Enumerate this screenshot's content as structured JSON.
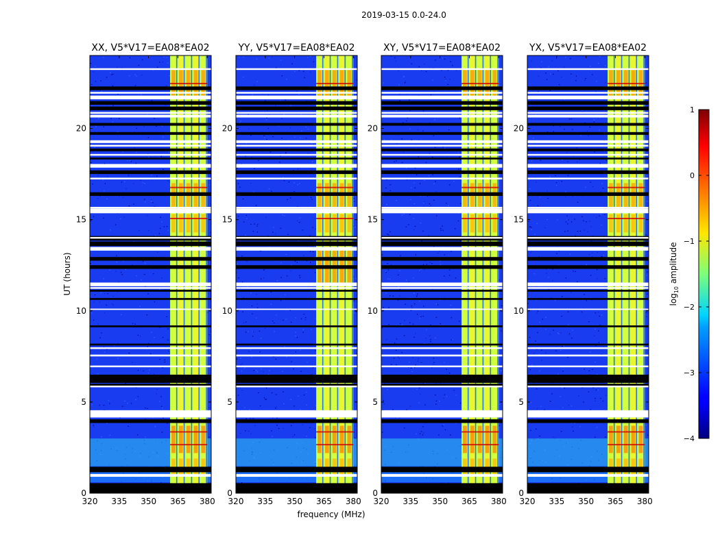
{
  "chart_data": {
    "type": "heatmap",
    "suptitle": "2019-03-15 0.0-24.0",
    "xlabel": "frequency (MHz)",
    "ylabel": "UT (hours)",
    "xlim": [
      320,
      382
    ],
    "ylim": [
      0,
      24
    ],
    "xticks": [
      320,
      335,
      350,
      365,
      380
    ],
    "yticks": [
      0,
      5,
      10,
      15,
      20
    ],
    "xtick_labels": [
      "320",
      "335",
      "350",
      "365",
      "380"
    ],
    "ytick_labels": [
      "0",
      "5",
      "10",
      "15",
      "20"
    ],
    "active_band_mhz": [
      361,
      380
    ],
    "flagged_time_rows_hours": [
      [
        0.0,
        0.55
      ],
      [
        0.9,
        1.05
      ],
      [
        1.15,
        1.45
      ],
      [
        3.85,
        4.05
      ],
      [
        4.15,
        4.55
      ],
      [
        5.85,
        6.0
      ],
      [
        6.05,
        6.5
      ],
      [
        7.5,
        7.6
      ],
      [
        8.1,
        8.2
      ],
      [
        9.1,
        9.2
      ],
      [
        10.05,
        10.12
      ],
      [
        10.6,
        10.7
      ],
      [
        11.05,
        11.15
      ],
      [
        11.35,
        11.55
      ],
      [
        12.3,
        12.5
      ],
      [
        12.75,
        12.95
      ],
      [
        13.3,
        13.5
      ],
      [
        13.55,
        13.8
      ],
      [
        13.85,
        14.1
      ],
      [
        15.35,
        15.6
      ],
      [
        16.3,
        16.5
      ],
      [
        17.5,
        17.7
      ],
      [
        17.85,
        18.05
      ],
      [
        18.3,
        18.4
      ],
      [
        18.75,
        18.9
      ],
      [
        19.2,
        19.35
      ],
      [
        19.65,
        19.8
      ],
      [
        20.15,
        20.3
      ],
      [
        20.6,
        20.75
      ],
      [
        21.0,
        21.2
      ],
      [
        21.3,
        21.5
      ],
      [
        21.6,
        21.8
      ],
      [
        22.1,
        22.3
      ]
    ],
    "panels": [
      {
        "title": "XX, V5*V17=EA08*EA02"
      },
      {
        "title": "YY, V5*V17=EA08*EA02"
      },
      {
        "title": "XY, V5*V17=EA08*EA02"
      },
      {
        "title": "YX, V5*V17=EA08*EA02"
      }
    ],
    "colorbar": {
      "label": "log10 amplitude",
      "range": [
        -4,
        1
      ],
      "ticks": [
        -4,
        -3,
        -2,
        -1,
        0,
        1
      ],
      "tick_labels": [
        "−4",
        "−3",
        "−2",
        "−1",
        "0",
        "1"
      ],
      "colormap": "jet"
    }
  }
}
